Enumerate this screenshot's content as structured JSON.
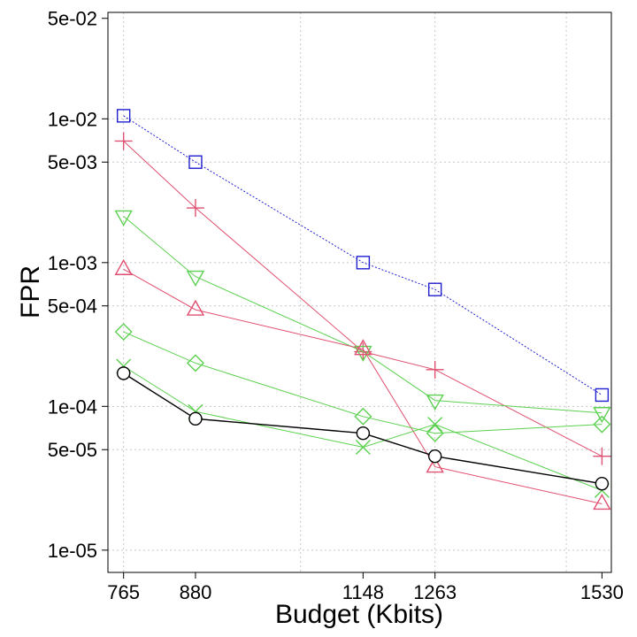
{
  "chart_data": {
    "type": "line",
    "xlabel": "Budget (Kbits)",
    "ylabel": "FPR",
    "yscale": "log",
    "xlim": [
      740,
      1545
    ],
    "ylim": [
      7e-06,
      0.055
    ],
    "x_ticks": [
      765,
      880,
      1148,
      1263,
      1530
    ],
    "x_tick_labels": [
      "765",
      "880",
      "1148",
      "1263",
      "1530"
    ],
    "x_grid": [
      765,
      1048,
      1263,
      1473
    ],
    "y_ticks": [
      0.05,
      0.01,
      0.005,
      0.001,
      0.0005,
      0.0001,
      5e-05,
      1e-05
    ],
    "y_tick_labels": [
      "5e-02",
      "1e-02",
      "5e-03",
      "1e-03",
      "5e-04",
      "1e-04",
      "5e-05",
      "1e-05"
    ],
    "y_grid": [
      0.01,
      0.005,
      0.001,
      0.0005,
      0.0001,
      5e-05,
      1e-05
    ],
    "grid": true,
    "series": [
      {
        "name": "blue-square",
        "marker": "square",
        "color": "#2020d0",
        "dash": "2 2",
        "x": [
          765,
          880,
          1148,
          1263,
          1530
        ],
        "values": [
          0.0105,
          0.005,
          0.001,
          0.00065,
          0.00012
        ]
      },
      {
        "name": "red-plus",
        "marker": "plus",
        "color": "#e05070",
        "dash": "",
        "x": [
          765,
          880,
          1148,
          1263,
          1530
        ],
        "values": [
          0.007,
          0.0024,
          0.00024,
          0.00018,
          4.5e-05
        ]
      },
      {
        "name": "green-down-triangle",
        "marker": "triangle-down",
        "color": "#5cd050",
        "dash": "",
        "x": [
          765,
          880,
          1148,
          1263,
          1530
        ],
        "values": [
          0.0021,
          0.0008,
          0.00024,
          0.00011,
          9e-05
        ]
      },
      {
        "name": "red-up-triangle",
        "marker": "triangle-up",
        "color": "#e05070",
        "dash": "",
        "x": [
          765,
          880,
          1148,
          1263,
          1530
        ],
        "values": [
          0.0009,
          0.00047,
          0.00025,
          3.8e-05,
          2.1e-05
        ]
      },
      {
        "name": "green-diamond",
        "marker": "diamond",
        "color": "#5cd050",
        "dash": "",
        "x": [
          765,
          880,
          1148,
          1263,
          1530
        ],
        "values": [
          0.00033,
          0.0002,
          8.5e-05,
          6.5e-05,
          7.5e-05
        ]
      },
      {
        "name": "green-cross",
        "marker": "cross",
        "color": "#5cd050",
        "dash": "",
        "x": [
          765,
          880,
          1148,
          1263,
          1530
        ],
        "values": [
          0.00019,
          9.2e-05,
          5.2e-05,
          7.5e-05,
          2.6e-05
        ]
      },
      {
        "name": "black-circle",
        "marker": "circle",
        "color": "#000000",
        "dash": "",
        "x": [
          765,
          880,
          1148,
          1263,
          1530
        ],
        "values": [
          0.00017,
          8.2e-05,
          6.5e-05,
          4.5e-05,
          2.9e-05
        ]
      }
    ]
  }
}
